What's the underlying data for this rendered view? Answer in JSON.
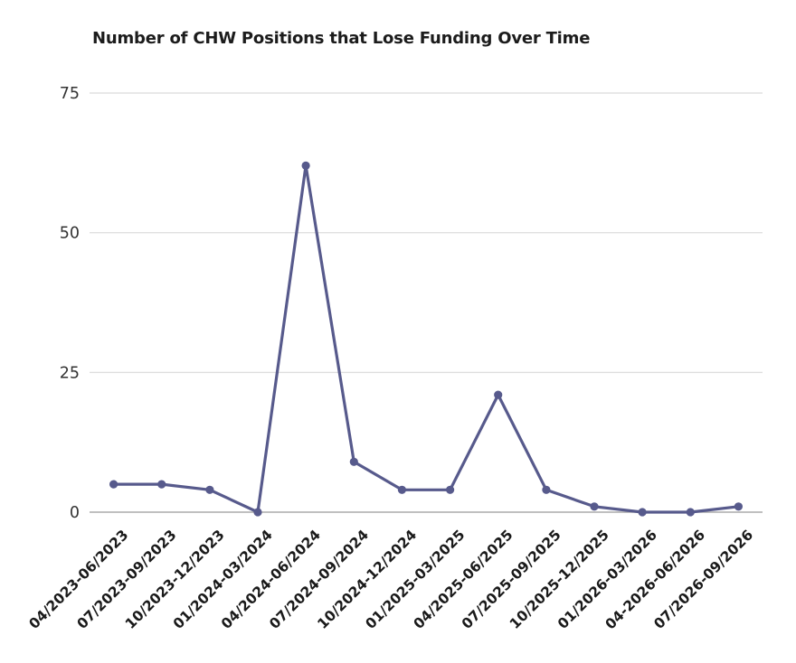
{
  "page": {
    "background_color": "#ffffff"
  },
  "chart_data": {
    "type": "line",
    "title": "Number of CHW Positions that Lose Funding Over Time",
    "categories": [
      "04/2023-06/2023",
      "07/2023-09/2023",
      "10/2023-12/2023",
      "01/2024-03/2024",
      "04/2024-06/2024",
      "07/2024-09/2024",
      "10/2024-12/2024",
      "01/2025-03/2025",
      "04/2025-06/2025",
      "07/2025-09/2025",
      "10/2025-12/2025",
      "01/2026-03/2026",
      "04-2026-06/2026",
      "07/2026-09/2026"
    ],
    "values": [
      5,
      5,
      4,
      0,
      62,
      9,
      4,
      4,
      21,
      4,
      1,
      0,
      0,
      1
    ],
    "xlabel": "",
    "ylabel": "",
    "ylim": [
      0,
      75
    ],
    "yticks": [
      0,
      25,
      50,
      75
    ],
    "grid": "horizontal-only",
    "legend": "none",
    "x_label_rotation_degrees": 45,
    "colors": {
      "line": "#575a8c",
      "point": "#575a8c",
      "gridline": "#d9d9d9",
      "zero_line": "#ababab",
      "title_text": "#1c1c1c",
      "y_tick_text": "#333333",
      "x_tick_text": "#1a1a1a"
    }
  }
}
